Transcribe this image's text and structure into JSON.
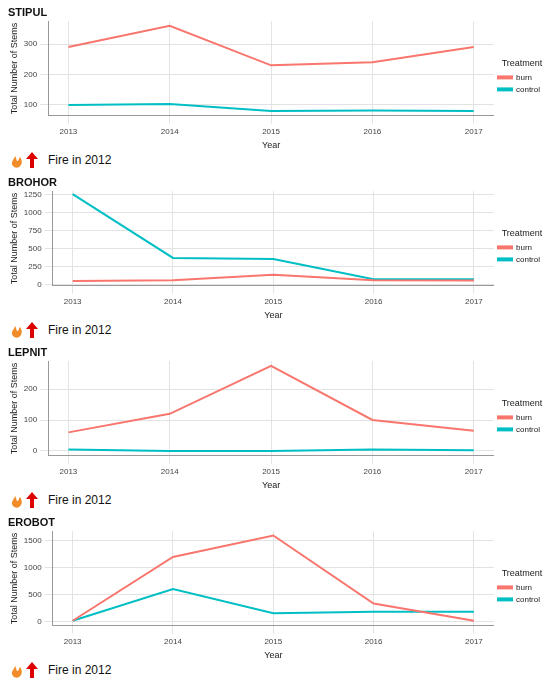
{
  "chart_data": [
    {
      "type": "line",
      "title": "STIPUL",
      "xlabel": "Year",
      "ylabel": "Total Number of Stems",
      "x": [
        2013,
        2014,
        2015,
        2016,
        2017
      ],
      "series": [
        {
          "name": "burn",
          "color": "#f8766d",
          "values": [
            290,
            360,
            230,
            240,
            290
          ]
        },
        {
          "name": "control",
          "color": "#00bfc4",
          "values": [
            100,
            103,
            80,
            82,
            80
          ]
        }
      ],
      "xlim": [
        2012.8,
        2017.2
      ],
      "xticks": [
        2013,
        2014,
        2015,
        2016,
        2017
      ],
      "ylim": [
        65,
        375
      ],
      "yticks": [
        100,
        200,
        300
      ],
      "grid": true,
      "legend": "right",
      "legend_title": "Treatment",
      "annotations": [
        "Fire in 2012"
      ]
    },
    {
      "type": "line",
      "title": "BROHOR",
      "xlabel": "Year",
      "ylabel": "Total Number of Stems",
      "x": [
        2013,
        2014,
        2015,
        2016,
        2017
      ],
      "series": [
        {
          "name": "burn",
          "color": "#f8766d",
          "values": [
            50,
            60,
            135,
            60,
            55
          ]
        },
        {
          "name": "control",
          "color": "#00bfc4",
          "values": [
            1260,
            370,
            355,
            75,
            75
          ]
        }
      ],
      "xlim": [
        2012.8,
        2017.2
      ],
      "xticks": [
        2013,
        2014,
        2015,
        2016,
        2017
      ],
      "ylim": [
        -15,
        1300
      ],
      "yticks": [
        0,
        250,
        500,
        750,
        1000,
        1250
      ],
      "grid": true,
      "legend": "right",
      "legend_title": "Treatment",
      "annotations": [
        "Fire in 2012"
      ]
    },
    {
      "type": "line",
      "title": "LEPNIT",
      "xlabel": "Year",
      "ylabel": "Total Number of Stems",
      "x": [
        2013,
        2014,
        2015,
        2016,
        2017
      ],
      "series": [
        {
          "name": "burn",
          "color": "#f8766d",
          "values": [
            60,
            120,
            275,
            100,
            65
          ]
        },
        {
          "name": "control",
          "color": "#00bfc4",
          "values": [
            5,
            0,
            0,
            5,
            2
          ]
        }
      ],
      "xlim": [
        2012.8,
        2017.2
      ],
      "xticks": [
        2013,
        2014,
        2015,
        2016,
        2017
      ],
      "ylim": [
        -15,
        290
      ],
      "yticks": [
        0,
        100,
        200
      ],
      "grid": true,
      "legend": "right",
      "legend_title": "Treatment",
      "annotations": [
        "Fire in 2012"
      ]
    },
    {
      "type": "line",
      "title": "EROBOT",
      "xlabel": "Year",
      "ylabel": "Total Number of Stems",
      "x": [
        2013,
        2014,
        2015,
        2016,
        2017
      ],
      "series": [
        {
          "name": "burn",
          "color": "#f8766d",
          "values": [
            10,
            1200,
            1600,
            330,
            10
          ]
        },
        {
          "name": "control",
          "color": "#00bfc4",
          "values": [
            10,
            600,
            150,
            180,
            180
          ]
        }
      ],
      "xlim": [
        2012.8,
        2017.2
      ],
      "xticks": [
        2013,
        2014,
        2015,
        2016,
        2017
      ],
      "ylim": [
        -80,
        1680
      ],
      "yticks": [
        0,
        500,
        1000,
        1500
      ],
      "grid": true,
      "legend": "right",
      "legend_title": "Treatment",
      "annotations": [
        "Fire in 2012"
      ]
    }
  ]
}
